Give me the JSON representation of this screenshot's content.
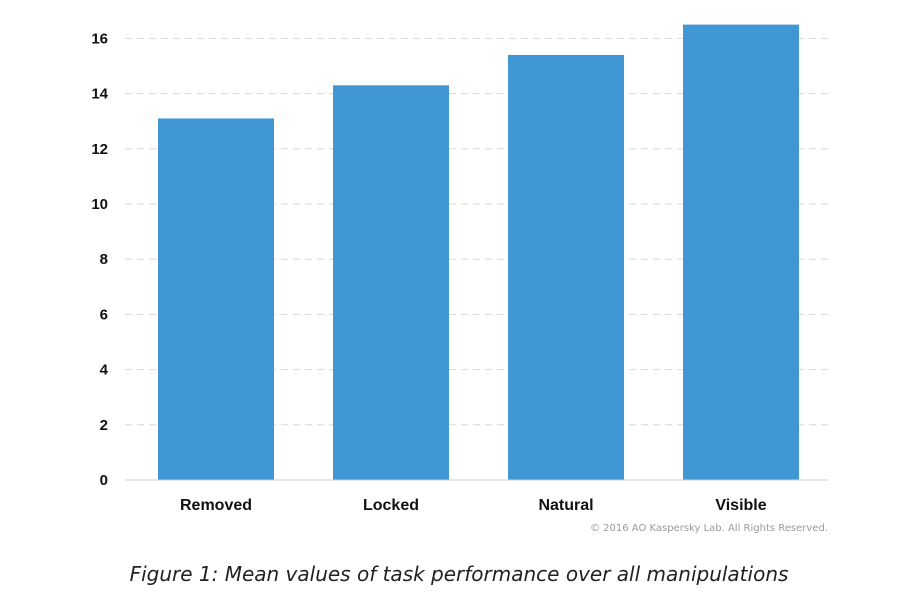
{
  "chart_data": {
    "type": "bar",
    "categories": [
      "Removed",
      "Locked",
      "Natural",
      "Visible"
    ],
    "values": [
      13.1,
      14.3,
      15.4,
      16.5
    ],
    "ylim": [
      0,
      16
    ],
    "yticks": [
      0,
      2,
      4,
      6,
      8,
      10,
      12,
      14,
      16
    ],
    "grid": true,
    "bar_color": "#4197d4",
    "grid_color": "#d8d8d8"
  },
  "copyright": "© 2016 AO Kaspersky Lab. All Rights Reserved.",
  "caption": "Figure 1: Mean values of task performance over all manipulations"
}
